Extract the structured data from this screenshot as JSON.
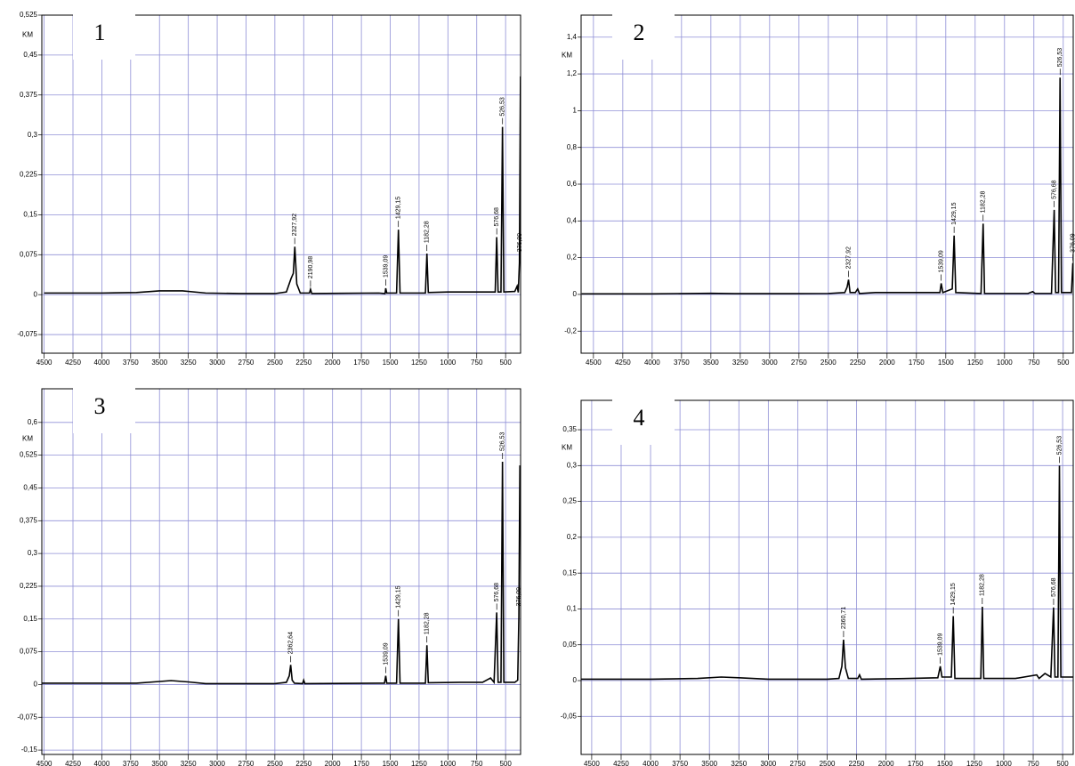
{
  "chart_data": [
    {
      "type": "line",
      "panel_label": "1",
      "y_label": "KM",
      "grid": true,
      "legend": false,
      "xlim": [
        4520,
        370
      ],
      "ylim": [
        -0.11,
        0.525
      ],
      "xticks": [
        4500,
        4250,
        4000,
        3750,
        3500,
        3250,
        3000,
        2750,
        2500,
        2250,
        2000,
        1750,
        1500,
        1250,
        1000,
        750,
        500
      ],
      "yticks": [
        {
          "value": -0.075,
          "label": "-0,075"
        },
        0,
        {
          "value": 0.075,
          "label": "0,075"
        },
        {
          "value": 0.15,
          "label": "0,15"
        },
        {
          "value": 0.225,
          "label": "0,225"
        },
        {
          "value": 0.3,
          "label": "0,3"
        },
        {
          "value": 0.375,
          "label": "0,375"
        },
        {
          "value": 0.45,
          "label": "0,45"
        },
        {
          "value": 0.525,
          "label": "0,525"
        }
      ],
      "x": [
        4500,
        4000,
        3700,
        3500,
        3300,
        3100,
        2800,
        2500,
        2400,
        2360,
        2340,
        2327,
        2310,
        2280,
        2200,
        2191,
        2180,
        1600,
        1545,
        1539,
        1530,
        1445,
        1429,
        1415,
        1195,
        1182,
        1170,
        1000,
        800,
        590,
        577,
        565,
        540,
        527,
        515,
        420,
        400,
        390,
        380,
        371
      ],
      "series": [
        {
          "color": "#000000",
          "values": [
            0.003,
            0.003,
            0.004,
            0.007,
            0.007,
            0.003,
            0.002,
            0.002,
            0.005,
            0.03,
            0.04,
            0.09,
            0.02,
            0.003,
            0.003,
            0.01,
            0.002,
            0.003,
            0.002,
            0.012,
            0.003,
            0.003,
            0.122,
            0.003,
            0.003,
            0.077,
            0.004,
            0.005,
            0.005,
            0.005,
            0.108,
            0.005,
            0.005,
            0.315,
            0.005,
            0.006,
            0.016,
            0.004,
            0.06,
            0.41
          ]
        }
      ],
      "annotations": [
        {
          "text": "2327,92",
          "x": 2327.92,
          "y": 0.09
        },
        {
          "text": "2190,98",
          "x": 2190.98,
          "y": 0.01
        },
        {
          "text": "1539,09",
          "x": 1539.09,
          "y": 0.012
        },
        {
          "text": "1429,15",
          "x": 1429.15,
          "y": 0.122
        },
        {
          "text": "1182,28",
          "x": 1182.28,
          "y": 0.077
        },
        {
          "text": "576,68",
          "x": 576.68,
          "y": 0.108
        },
        {
          "text": "526,53",
          "x": 526.53,
          "y": 0.315
        },
        {
          "text": "376,09",
          "x": 376.09,
          "y": 0.06
        }
      ]
    },
    {
      "type": "line",
      "panel_label": "2",
      "y_label": "KM",
      "grid": true,
      "legend": false,
      "xlim": [
        4605,
        415
      ],
      "ylim": [
        -0.32,
        1.52
      ],
      "xticks": [
        4500,
        4250,
        4000,
        3750,
        3500,
        3250,
        3000,
        2750,
        2500,
        2250,
        2000,
        1750,
        1500,
        1250,
        1000,
        750,
        500
      ],
      "yticks": [
        {
          "value": -0.2,
          "label": "-0,2"
        },
        0,
        {
          "value": 0.2,
          "label": "0,2"
        },
        {
          "value": 0.4,
          "label": "0,4"
        },
        {
          "value": 0.6,
          "label": "0,6"
        },
        {
          "value": 0.8,
          "label": "0,8"
        },
        1,
        {
          "value": 1.2,
          "label": "1,2"
        },
        {
          "value": 1.4,
          "label": "1,4"
        }
      ],
      "x": [
        4600,
        4000,
        3500,
        3300,
        2900,
        2500,
        2360,
        2340,
        2328,
        2315,
        2270,
        2250,
        2235,
        2100,
        2000,
        1900,
        1600,
        1550,
        1539,
        1525,
        1445,
        1429,
        1415,
        1200,
        1182,
        1170,
        800,
        760,
        740,
        600,
        577,
        565,
        540,
        527,
        515,
        430,
        418
      ],
      "series": [
        {
          "color": "#000000",
          "values": [
            0.003,
            0.003,
            0.006,
            0.004,
            0.004,
            0.005,
            0.01,
            0.04,
            0.08,
            0.01,
            0.01,
            0.03,
            0.005,
            0.01,
            0.01,
            0.01,
            0.01,
            0.01,
            0.06,
            0.01,
            0.03,
            0.32,
            0.01,
            0.005,
            0.385,
            0.005,
            0.005,
            0.015,
            0.005,
            0.005,
            0.46,
            0.01,
            0.01,
            1.18,
            0.01,
            0.01,
            0.17
          ]
        }
      ],
      "annotations": [
        {
          "text": "2327,92",
          "x": 2327.92,
          "y": 0.08
        },
        {
          "text": "1539,09",
          "x": 1539.09,
          "y": 0.06
        },
        {
          "text": "1429,15",
          "x": 1429.15,
          "y": 0.32
        },
        {
          "text": "1182,28",
          "x": 1182.28,
          "y": 0.385
        },
        {
          "text": "576,68",
          "x": 576.68,
          "y": 0.46
        },
        {
          "text": "526,53",
          "x": 526.53,
          "y": 1.18
        },
        {
          "text": "376,09",
          "x": 418,
          "y": 0.17
        }
      ]
    },
    {
      "type": "line",
      "panel_label": "3",
      "y_label": "KM",
      "grid": true,
      "legend": false,
      "xlim": [
        4520,
        370
      ],
      "ylim": [
        -0.16,
        0.677
      ],
      "xticks": [
        4500,
        4250,
        4000,
        3750,
        3500,
        3250,
        3000,
        2750,
        2500,
        2250,
        2000,
        1750,
        1500,
        1250,
        1000,
        750,
        500
      ],
      "yticks": [
        {
          "value": -0.15,
          "label": "-0,15"
        },
        {
          "value": -0.075,
          "label": "-0,075"
        },
        0,
        {
          "value": 0.075,
          "label": "0,075"
        },
        {
          "value": 0.15,
          "label": "0,15"
        },
        {
          "value": 0.225,
          "label": "0,225"
        },
        {
          "value": 0.3,
          "label": "0,3"
        },
        {
          "value": 0.375,
          "label": "0,375"
        },
        {
          "value": 0.45,
          "label": "0,45"
        },
        {
          "value": 0.525,
          "label": "0,525"
        },
        {
          "value": 0.6,
          "label": "0,6"
        }
      ],
      "x": [
        4520,
        4000,
        3700,
        3500,
        3400,
        3250,
        3100,
        2500,
        2400,
        2375,
        2363,
        2350,
        2330,
        2260,
        2250,
        2240,
        1600,
        1550,
        1539,
        1530,
        1445,
        1429,
        1415,
        1195,
        1182,
        1170,
        900,
        700,
        630,
        600,
        577,
        565,
        540,
        527,
        515,
        420,
        395,
        385,
        376,
        371
      ],
      "series": [
        {
          "color": "#000000",
          "values": [
            0.003,
            0.003,
            0.003,
            0.007,
            0.009,
            0.006,
            0.002,
            0.002,
            0.005,
            0.02,
            0.045,
            0.01,
            0.003,
            0.002,
            0.01,
            0.002,
            0.003,
            0.003,
            0.02,
            0.003,
            0.003,
            0.15,
            0.003,
            0.003,
            0.09,
            0.004,
            0.005,
            0.005,
            0.015,
            0.005,
            0.165,
            0.005,
            0.005,
            0.51,
            0.005,
            0.005,
            0.01,
            0.155,
            0.5,
            0.5
          ]
        }
      ],
      "annotations": [
        {
          "text": "2362,64",
          "x": 2362.64,
          "y": 0.045
        },
        {
          "text": "1539,09",
          "x": 1539.09,
          "y": 0.02
        },
        {
          "text": "1429,15",
          "x": 1429.15,
          "y": 0.15
        },
        {
          "text": "1182,28",
          "x": 1182.28,
          "y": 0.09
        },
        {
          "text": "576,68",
          "x": 576.68,
          "y": 0.165
        },
        {
          "text": "526,53",
          "x": 526.53,
          "y": 0.51
        },
        {
          "text": "376,09",
          "x": 385,
          "y": 0.155
        }
      ]
    },
    {
      "type": "line",
      "panel_label": "4",
      "y_label": "KM",
      "grid": true,
      "legend": false,
      "xlim": [
        4590,
        410
      ],
      "ylim": [
        -0.103,
        0.391
      ],
      "xticks": [
        4500,
        4250,
        4000,
        3750,
        3500,
        3250,
        3000,
        2750,
        2500,
        2250,
        2000,
        1750,
        1500,
        1250,
        1000,
        750,
        500
      ],
      "yticks": [
        {
          "value": -0.05,
          "label": "-0,05"
        },
        0,
        {
          "value": 0.05,
          "label": "0,05"
        },
        {
          "value": 0.1,
          "label": "0,1"
        },
        {
          "value": 0.15,
          "label": "0,15"
        },
        {
          "value": 0.2,
          "label": "0,2"
        },
        {
          "value": 0.25,
          "label": "0,25"
        },
        {
          "value": 0.3,
          "label": "0,3"
        },
        {
          "value": 0.35,
          "label": "0,35"
        }
      ],
      "x": [
        4590,
        4000,
        3600,
        3400,
        3250,
        3000,
        2500,
        2400,
        2375,
        2361,
        2345,
        2320,
        2240,
        2225,
        2210,
        1800,
        1560,
        1539,
        1525,
        1445,
        1429,
        1415,
        1195,
        1182,
        1170,
        900,
        720,
        700,
        650,
        600,
        577,
        565,
        540,
        527,
        515,
        450,
        410
      ],
      "series": [
        {
          "color": "#000000",
          "values": [
            0.002,
            0.002,
            0.003,
            0.005,
            0.004,
            0.002,
            0.002,
            0.003,
            0.02,
            0.057,
            0.018,
            0.003,
            0.003,
            0.008,
            0.002,
            0.003,
            0.004,
            0.02,
            0.005,
            0.005,
            0.09,
            0.003,
            0.003,
            0.103,
            0.003,
            0.003,
            0.008,
            0.003,
            0.01,
            0.005,
            0.102,
            0.005,
            0.005,
            0.3,
            0.005,
            0.005,
            0.005
          ]
        }
      ],
      "annotations": [
        {
          "text": "2360,71",
          "x": 2360.71,
          "y": 0.057
        },
        {
          "text": "1539,09",
          "x": 1539.09,
          "y": 0.02
        },
        {
          "text": "1429,15",
          "x": 1429.15,
          "y": 0.09
        },
        {
          "text": "1182,28",
          "x": 1182.28,
          "y": 0.103
        },
        {
          "text": "576,68",
          "x": 576.68,
          "y": 0.102
        },
        {
          "text": "526,53",
          "x": 526.53,
          "y": 0.3
        }
      ]
    }
  ]
}
